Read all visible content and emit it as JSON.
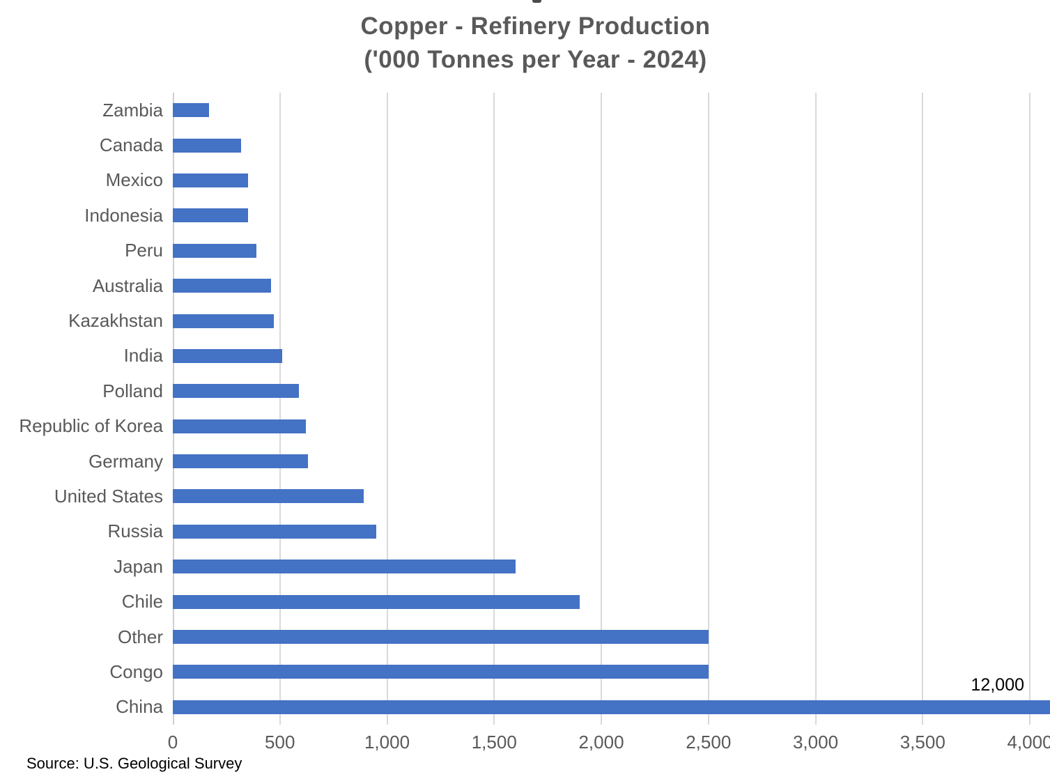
{
  "chart_data": {
    "type": "bar",
    "orientation": "horizontal",
    "title": "Copper - Refinery Production ('000 Tonnes per Year - 2024)",
    "title_line1": "Copper - Refinery Production",
    "title_line2": "('000 Tonnes per Year - 2024)",
    "categories": [
      "Zambia",
      "Canada",
      "Mexico",
      "Indonesia",
      "Peru",
      "Australia",
      "Kazakhstan",
      "India",
      "Polland",
      "Republic of Korea",
      "Germany",
      "United States",
      "Russia",
      "Japan",
      "Chile",
      "Other",
      "Congo",
      "China"
    ],
    "values": [
      170,
      320,
      350,
      350,
      390,
      460,
      470,
      510,
      590,
      620,
      630,
      890,
      950,
      1600,
      1900,
      2500,
      2500,
      12000
    ],
    "xlabel": "",
    "ylabel": "",
    "xlim": [
      0,
      4000
    ],
    "x_ticks": [
      {
        "value": 0,
        "label": "0"
      },
      {
        "value": 500,
        "label": "500"
      },
      {
        "value": 1000,
        "label": "1,000"
      },
      {
        "value": 1500,
        "label": "1,500"
      },
      {
        "value": 2000,
        "label": "2,000"
      },
      {
        "value": 2500,
        "label": "2,500"
      },
      {
        "value": 3000,
        "label": "3,000"
      },
      {
        "value": 3500,
        "label": "3,500"
      },
      {
        "value": 4000,
        "label": "4,000"
      }
    ],
    "grid": true,
    "legend": false,
    "bar_color": "#4472c4",
    "gridline_color": "#d9d9d9",
    "text_color": "#595959",
    "data_label": {
      "category": "China",
      "text": "12,000",
      "value": 12000
    },
    "note": "China bar exceeds axis maximum and is clipped at chart edge"
  },
  "source_note": "Source: U.S. Geological Survey"
}
